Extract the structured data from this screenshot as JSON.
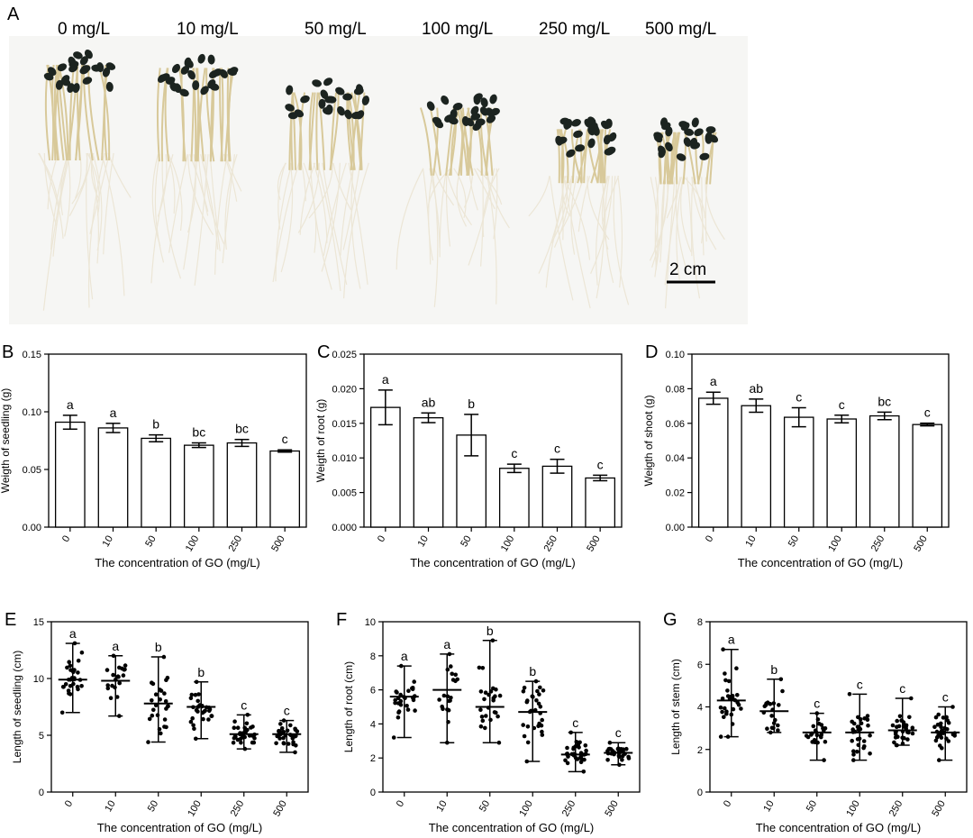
{
  "photo": {
    "panel_label": "A",
    "labels": [
      "0 mg/L",
      "10 mg/L",
      "50 mg/L",
      "100 mg/L",
      "250 mg/L",
      "500 mg/L"
    ],
    "scale_bar": "2 cm",
    "seedling_height": [
      1.0,
      0.98,
      0.82,
      0.72,
      0.58,
      0.56
    ],
    "colors": {
      "cotyledon": "#1c2420",
      "stem": "#d8c99a",
      "root": "#ece6d6",
      "background": "#f6f6f4"
    }
  },
  "chart_data": [
    {
      "id": "B",
      "type": "bar",
      "categories": [
        "0",
        "10",
        "50",
        "100",
        "250",
        "500"
      ],
      "values": [
        0.091,
        0.086,
        0.077,
        0.071,
        0.073,
        0.066
      ],
      "errors": [
        0.006,
        0.004,
        0.003,
        0.002,
        0.003,
        0.001
      ],
      "letters": [
        "a",
        "a",
        "b",
        "bc",
        "bc",
        "c"
      ],
      "ylabel": "Weigth of seedling (g)",
      "xlabel": "The concentration of GO (mg/L)",
      "ylim": [
        0,
        0.15
      ],
      "yticks": [
        "0.00",
        "0.05",
        "0.10",
        "0.15"
      ]
    },
    {
      "id": "C",
      "type": "bar",
      "categories": [
        "0",
        "10",
        "50",
        "100",
        "250",
        "500"
      ],
      "values": [
        0.0173,
        0.0158,
        0.0133,
        0.0085,
        0.0088,
        0.0071
      ],
      "errors": [
        0.0025,
        0.0007,
        0.003,
        0.0006,
        0.001,
        0.0004
      ],
      "letters": [
        "a",
        "ab",
        "b",
        "c",
        "c",
        "c"
      ],
      "ylabel": "Weigth of root (g)",
      "xlabel": "The concentration of GO (mg/L)",
      "ylim": [
        0,
        0.025
      ],
      "yticks": [
        "0.000",
        "0.005",
        "0.010",
        "0.015",
        "0.020",
        "0.025"
      ]
    },
    {
      "id": "D",
      "type": "bar",
      "categories": [
        "0",
        "10",
        "50",
        "100",
        "250",
        "500"
      ],
      "values": [
        0.0745,
        0.0702,
        0.0635,
        0.0625,
        0.0643,
        0.0593
      ],
      "errors": [
        0.0035,
        0.0038,
        0.0055,
        0.0022,
        0.0022,
        0.0008
      ],
      "letters": [
        "a",
        "ab",
        "c",
        "c",
        "bc",
        "c"
      ],
      "ylabel": "Weigth of shoot (g)",
      "xlabel": "The concentration of GO (mg/L)",
      "ylim": [
        0,
        0.1
      ],
      "yticks": [
        "0.00",
        "0.02",
        "0.04",
        "0.06",
        "0.08",
        "0.10"
      ]
    },
    {
      "id": "E",
      "type": "scatter",
      "categories": [
        "0",
        "10",
        "50",
        "100",
        "250",
        "500"
      ],
      "mean": [
        9.9,
        9.8,
        7.8,
        7.5,
        5.1,
        5.1
      ],
      "min": [
        7.0,
        6.7,
        4.4,
        4.7,
        3.8,
        3.5
      ],
      "max": [
        13.1,
        12.0,
        11.9,
        9.7,
        6.8,
        6.3
      ],
      "counts": [
        28,
        20,
        26,
        30,
        32,
        32
      ],
      "letters": [
        "a",
        "a",
        "b",
        "b",
        "c",
        "c"
      ],
      "ylabel": "Length of seedling (cm)",
      "xlabel": "The concentration of GO (mg/L)",
      "ylim": [
        0,
        15
      ],
      "yticks": [
        "0",
        "5",
        "10",
        "15"
      ]
    },
    {
      "id": "F",
      "type": "scatter",
      "categories": [
        "0",
        "10",
        "50",
        "100",
        "250",
        "500"
      ],
      "mean": [
        5.6,
        6.0,
        5.0,
        4.7,
        2.2,
        2.3
      ],
      "min": [
        3.2,
        2.9,
        2.9,
        1.8,
        1.2,
        1.6
      ],
      "max": [
        7.4,
        8.1,
        8.9,
        6.5,
        3.5,
        2.9
      ],
      "counts": [
        28,
        20,
        26,
        30,
        32,
        32
      ],
      "letters": [
        "a",
        "a",
        "b",
        "b",
        "c",
        "c"
      ],
      "ylabel": "Length of root (cm)",
      "xlabel": "The concentration of GO (mg/L)",
      "ylim": [
        0,
        10
      ],
      "yticks": [
        "0",
        "2",
        "4",
        "6",
        "8",
        "10"
      ]
    },
    {
      "id": "G",
      "type": "scatter",
      "categories": [
        "0",
        "10",
        "50",
        "100",
        "250",
        "500"
      ],
      "mean": [
        4.3,
        3.8,
        2.8,
        2.8,
        2.9,
        2.8
      ],
      "min": [
        2.6,
        2.8,
        1.5,
        1.5,
        2.2,
        1.5
      ],
      "max": [
        6.7,
        5.3,
        3.7,
        4.6,
        4.4,
        4.0
      ],
      "counts": [
        28,
        20,
        26,
        30,
        32,
        32
      ],
      "letters": [
        "a",
        "b",
        "c",
        "c",
        "c",
        "c"
      ],
      "ylabel": "Length of stem (cm)",
      "xlabel": "The concentration of GO (mg/L)",
      "ylim": [
        0,
        8
      ],
      "yticks": [
        "0",
        "2",
        "4",
        "6",
        "8"
      ]
    }
  ]
}
